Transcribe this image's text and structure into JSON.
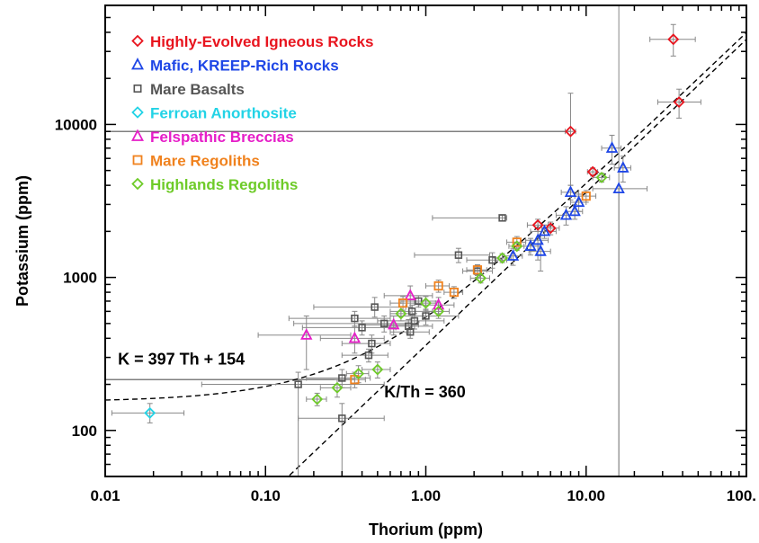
{
  "chart_data": {
    "type": "scatter",
    "xlabel": "Thorium (ppm)",
    "ylabel": "Potassium (ppm)",
    "xscale": "log",
    "yscale": "log",
    "xlim": [
      0.01,
      100
    ],
    "ylim": [
      50,
      60000
    ],
    "x_ticks": [
      0.01,
      0.1,
      1,
      10,
      100
    ],
    "x_tick_labels": [
      "0.01",
      "0.10",
      "1.00",
      "10.00",
      "100."
    ],
    "y_ticks": [
      100,
      1000,
      10000
    ],
    "y_tick_labels": [
      "100",
      "1000",
      "10000"
    ],
    "grid": false,
    "legend_position": "top-left",
    "series": [
      {
        "name": "Highly-Evolved Igneous Rocks",
        "marker": "diamond",
        "color": "#e8141e",
        "points": [
          {
            "x": 8.0,
            "y": 9000,
            "xerr": [
              7.4,
              8.6
            ],
            "yerr": [
              4000,
              16000
            ]
          },
          {
            "x": 11.0,
            "y": 4900,
            "xerr": [
              10.2,
              11.8
            ],
            "yerr": [
              4600,
              5200
            ]
          },
          {
            "x": 35.0,
            "y": 36000,
            "xerr": [
              25,
              48
            ],
            "yerr": [
              28000,
              45000
            ]
          },
          {
            "x": 38.0,
            "y": 14000,
            "xerr": [
              28,
              52
            ],
            "yerr": [
              11000,
              17000
            ]
          },
          {
            "x": 5.0,
            "y": 2200,
            "xerr": [
              4.3,
              5.8
            ],
            "yerr": [
              2000,
              2400
            ]
          },
          {
            "x": 6.0,
            "y": 2100,
            "xerr": [
              5.3,
              6.8
            ],
            "yerr": [
              1900,
              2300
            ]
          }
        ]
      },
      {
        "name": "Mafic, KREEP-Rich Rocks",
        "marker": "triangle",
        "color": "#1e46e6",
        "points": [
          {
            "x": 14.5,
            "y": 7000,
            "xerr": [
              12.5,
              16.5
            ],
            "yerr": [
              5500,
              8500
            ]
          },
          {
            "x": 17.0,
            "y": 5200,
            "xerr": [
              15,
              19
            ],
            "yerr": [
              4200,
              6200
            ]
          },
          {
            "x": 16.0,
            "y": 3800,
            "xerr": [
              11,
              24
            ],
            "yerr": [
              50,
              60000
            ]
          },
          {
            "x": 8.0,
            "y": 3600,
            "xerr": [
              7,
              9
            ],
            "yerr": [
              3200,
              4000
            ]
          },
          {
            "x": 9.0,
            "y": 3100,
            "xerr": [
              8,
              10
            ],
            "yerr": [
              2700,
              3500
            ]
          },
          {
            "x": 8.5,
            "y": 2700,
            "xerr": [
              7.5,
              9.5
            ],
            "yerr": [
              2400,
              3000
            ]
          },
          {
            "x": 7.5,
            "y": 2550,
            "xerr": [
              6.5,
              8.5
            ],
            "yerr": [
              2200,
              2900
            ]
          },
          {
            "x": 5.5,
            "y": 2000,
            "xerr": [
              4.5,
              6.5
            ],
            "yerr": [
              1800,
              2200
            ]
          },
          {
            "x": 5.0,
            "y": 1750,
            "xerr": [
              4.2,
              5.8
            ],
            "yerr": [
              1300,
              2100
            ]
          },
          {
            "x": 4.5,
            "y": 1600,
            "xerr": [
              3.8,
              5.2
            ],
            "yerr": [
              1400,
              1800
            ]
          },
          {
            "x": 5.2,
            "y": 1480,
            "xerr": [
              4.4,
              6.0
            ],
            "yerr": [
              1100,
              1900
            ]
          },
          {
            "x": 3.5,
            "y": 1380,
            "xerr": [
              3.0,
              4.0
            ],
            "yerr": [
              1200,
              1550
            ]
          }
        ]
      },
      {
        "name": "Mare Basalts",
        "marker": "square-small",
        "color": "#555555",
        "points": [
          {
            "x": 3.0,
            "y": 2450,
            "xerr": [
              1.1,
              3.2
            ],
            "yerr": [
              2350,
              2550
            ]
          },
          {
            "x": 1.6,
            "y": 1400,
            "xerr": [
              0.85,
              2.5
            ],
            "yerr": [
              1250,
              1550
            ]
          },
          {
            "x": 2.6,
            "y": 1300,
            "xerr": [
              1.8,
              3.2
            ],
            "yerr": [
              1150,
              1450
            ]
          },
          {
            "x": 2.1,
            "y": 1100,
            "xerr": [
              1.7,
              2.6
            ],
            "yerr": [
              1000,
              1200
            ]
          },
          {
            "x": 0.48,
            "y": 640,
            "xerr": [
              0.2,
              0.75
            ],
            "yerr": [
              550,
              740
            ]
          },
          {
            "x": 0.55,
            "y": 500,
            "xerr": [
              0.15,
              0.9
            ],
            "yerr": [
              440,
              560
            ]
          },
          {
            "x": 0.36,
            "y": 540,
            "xerr": [
              0.14,
              0.6
            ],
            "yerr": [
              480,
              600
            ]
          },
          {
            "x": 0.4,
            "y": 470,
            "xerr": [
              0.17,
              0.65
            ],
            "yerr": [
              420,
              520
            ]
          },
          {
            "x": 0.46,
            "y": 370,
            "xerr": [
              0.3,
              0.6
            ],
            "yerr": [
              320,
              420
            ]
          },
          {
            "x": 0.44,
            "y": 310,
            "xerr": [
              0.3,
              0.58
            ],
            "yerr": [
              280,
              340
            ]
          },
          {
            "x": 0.3,
            "y": 220,
            "xerr": [
              0.18,
              0.45
            ],
            "yerr": [
              190,
              250
            ]
          },
          {
            "x": 0.16,
            "y": 200,
            "xerr": [
              0.04,
              0.55
            ],
            "yerr": [
              50,
              240
            ]
          },
          {
            "x": 0.3,
            "y": 120,
            "xerr": [
              0.16,
              0.55
            ],
            "yerr": [
              50,
              150
            ]
          },
          {
            "x": 1.0,
            "y": 560,
            "xerr": [
              0.6,
              1.6
            ],
            "yerr": [
              490,
              620
            ]
          },
          {
            "x": 0.85,
            "y": 520,
            "xerr": [
              0.5,
              1.3
            ],
            "yerr": [
              460,
              580
            ]
          },
          {
            "x": 0.78,
            "y": 480,
            "xerr": [
              0.55,
              1.1
            ],
            "yerr": [
              430,
              530
            ]
          },
          {
            "x": 0.8,
            "y": 440,
            "xerr": [
              0.6,
              1.05
            ],
            "yerr": [
              400,
              480
            ]
          },
          {
            "x": 0.82,
            "y": 600,
            "xerr": [
              0.6,
              1.1
            ],
            "yerr": [
              540,
              660
            ]
          },
          {
            "x": 0.9,
            "y": 700,
            "xerr": [
              0.7,
              1.2
            ],
            "yerr": [
              640,
              760
            ]
          }
        ]
      },
      {
        "name": "Ferroan Anorthosite",
        "marker": "diamond",
        "color": "#22d3e6",
        "points": [
          {
            "x": 0.019,
            "y": 130,
            "xerr": [
              0.011,
              0.031
            ],
            "yerr": [
              112,
              150
            ]
          }
        ]
      },
      {
        "name": "Felspathic Breccias",
        "marker": "triangle",
        "color": "#e61ec8",
        "points": [
          {
            "x": 0.18,
            "y": 420,
            "xerr": [
              0.09,
              0.34
            ],
            "yerr": [
              250,
              560
            ]
          },
          {
            "x": 0.36,
            "y": 400,
            "xerr": [
              0.22,
              0.55
            ],
            "yerr": [
              320,
              480
            ]
          },
          {
            "x": 0.63,
            "y": 490,
            "xerr": [
              0.4,
              0.9
            ],
            "yerr": [
              420,
              560
            ]
          },
          {
            "x": 0.8,
            "y": 760,
            "xerr": [
              0.55,
              1.1
            ],
            "yerr": [
              640,
              880
            ]
          },
          {
            "x": 1.2,
            "y": 660,
            "xerr": [
              0.9,
              1.5
            ],
            "yerr": [
              580,
              740
            ]
          }
        ]
      },
      {
        "name": "Mare Regoliths",
        "marker": "square",
        "color": "#f0821e",
        "points": [
          {
            "x": 10.0,
            "y": 3400,
            "xerr": [
              8.5,
              11.5
            ],
            "yerr": [
              3100,
              3700
            ]
          },
          {
            "x": 3.7,
            "y": 1700,
            "xerr": [
              3.2,
              4.2
            ],
            "yerr": [
              1550,
              1850
            ]
          },
          {
            "x": 2.1,
            "y": 1120,
            "xerr": [
              1.8,
              2.4
            ],
            "yerr": [
              1030,
              1210
            ]
          },
          {
            "x": 1.5,
            "y": 800,
            "xerr": [
              1.3,
              1.7
            ],
            "yerr": [
              730,
              870
            ]
          },
          {
            "x": 1.2,
            "y": 880,
            "xerr": [
              1.0,
              1.4
            ],
            "yerr": [
              800,
              960
            ]
          },
          {
            "x": 0.72,
            "y": 680,
            "xerr": [
              0.6,
              0.85
            ],
            "yerr": [
              610,
              750
            ]
          },
          {
            "x": 0.36,
            "y": 215,
            "xerr": [
              0.3,
              0.42
            ],
            "yerr": [
              190,
              240
            ]
          }
        ]
      },
      {
        "name": "Highlands Regoliths",
        "marker": "diamond",
        "color": "#6ecb28",
        "points": [
          {
            "x": 12.5,
            "y": 4500,
            "xerr": [
              11,
              14
            ],
            "yerr": [
              4200,
              4800
            ]
          },
          {
            "x": 3.7,
            "y": 1600,
            "xerr": [
              3.3,
              4.1
            ],
            "yerr": [
              1500,
              1700
            ]
          },
          {
            "x": 3.0,
            "y": 1340,
            "xerr": [
              2.6,
              3.4
            ],
            "yerr": [
              1250,
              1430
            ]
          },
          {
            "x": 2.2,
            "y": 990,
            "xerr": [
              1.9,
              2.5
            ],
            "yerr": [
              920,
              1060
            ]
          },
          {
            "x": 1.0,
            "y": 680,
            "xerr": [
              0.85,
              1.15
            ],
            "yerr": [
              610,
              750
            ]
          },
          {
            "x": 1.2,
            "y": 600,
            "xerr": [
              1.0,
              1.4
            ],
            "yerr": [
              540,
              660
            ]
          },
          {
            "x": 0.7,
            "y": 580,
            "xerr": [
              0.6,
              0.8
            ],
            "yerr": [
              520,
              640
            ]
          },
          {
            "x": 0.5,
            "y": 250,
            "xerr": [
              0.4,
              0.6
            ],
            "yerr": [
              220,
              280
            ]
          },
          {
            "x": 0.38,
            "y": 235,
            "xerr": [
              0.32,
              0.44
            ],
            "yerr": [
              205,
              265
            ]
          },
          {
            "x": 0.28,
            "y": 190,
            "xerr": [
              0.22,
              0.34
            ],
            "yerr": [
              165,
              215
            ]
          },
          {
            "x": 0.21,
            "y": 160,
            "xerr": [
              0.18,
              0.24
            ],
            "yerr": [
              145,
              175
            ]
          }
        ]
      }
    ],
    "fit_lines": [
      {
        "label": "K = 397 Th + 154",
        "type": "linear",
        "slope": 397,
        "intercept": 154
      },
      {
        "label": "K/Th = 360",
        "type": "ratio",
        "slope": 360,
        "intercept": 0
      }
    ],
    "reference_lines": [
      {
        "orientation": "horizontal",
        "value": 9000,
        "from": 0.01,
        "to": 8.0,
        "color": "#555555"
      },
      {
        "orientation": "horizontal",
        "value": 215,
        "from": 0.01,
        "to": 0.36,
        "color": "#555555"
      },
      {
        "orientation": "vertical",
        "value": 16.0,
        "from": 50,
        "to": 3800,
        "color": "#999999"
      }
    ],
    "annotations": [
      {
        "text": "K = 397 Th + 154",
        "x": 0.012,
        "y": 270
      },
      {
        "text": "K/Th = 360",
        "x": 0.55,
        "y": 165
      }
    ]
  }
}
